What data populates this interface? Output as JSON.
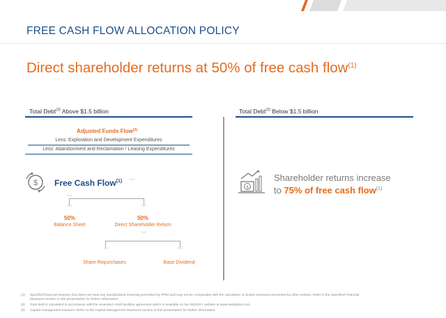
{
  "page": {
    "title": "FREE CASH FLOW ALLOCATION POLICY",
    "headline": "Direct shareholder returns at 50% of free cash flow",
    "headline_sup": "(1)"
  },
  "left": {
    "header": "Total Debt",
    "header_sup": "(2)",
    "header_rest": " Above $1.5 billion",
    "afhead": "Adjusted Funds Flow",
    "afhead_sup": "(3)",
    "less1": "Less: Exploration and Development Expenditures",
    "less2": "Less: Abandonment and Reclamation / Leasing Expenditures",
    "fcf": "Free Cash Flow",
    "fcf_sup": "(1)",
    "bs_pct": "50%",
    "bs_label": "Balance Sheet",
    "dsr_pct": "50%",
    "dsr_label": "Direct Shareholder Return",
    "share_rep": "Share Repurchases",
    "base_div": "Base Dividend"
  },
  "right": {
    "header": "Total Debt",
    "header_sup": "(2)",
    "header_rest": " Below $1.5 billion",
    "line1": "Shareholder returns increase",
    "line2_pre": "to ",
    "line2_bold": "75% of free cash flow",
    "line2_sup": "(1)"
  },
  "footnotes": [
    {
      "n": "(1)",
      "text": "Specified financial measure that does not have any standardized meaning prescribed by IFRS and may not be comparable with the calculation of similar measures presented by other entities. Refer to the Specified Financial"
    },
    {
      "n": "",
      "text": "Measures section in this presentation for further information."
    },
    {
      "n": "(2)",
      "text": "Total debt is calculated in accordance with the amended credit facilities agreement which is available on the SEDAR+ website at www.sedarplus.com."
    },
    {
      "n": "(3)",
      "text": "Capital management measure. Refer to the Capital Management Measures section in this presentation for further information."
    }
  ],
  "colors": {
    "accent": "#e46c1f",
    "navy": "#1f4e8c"
  }
}
